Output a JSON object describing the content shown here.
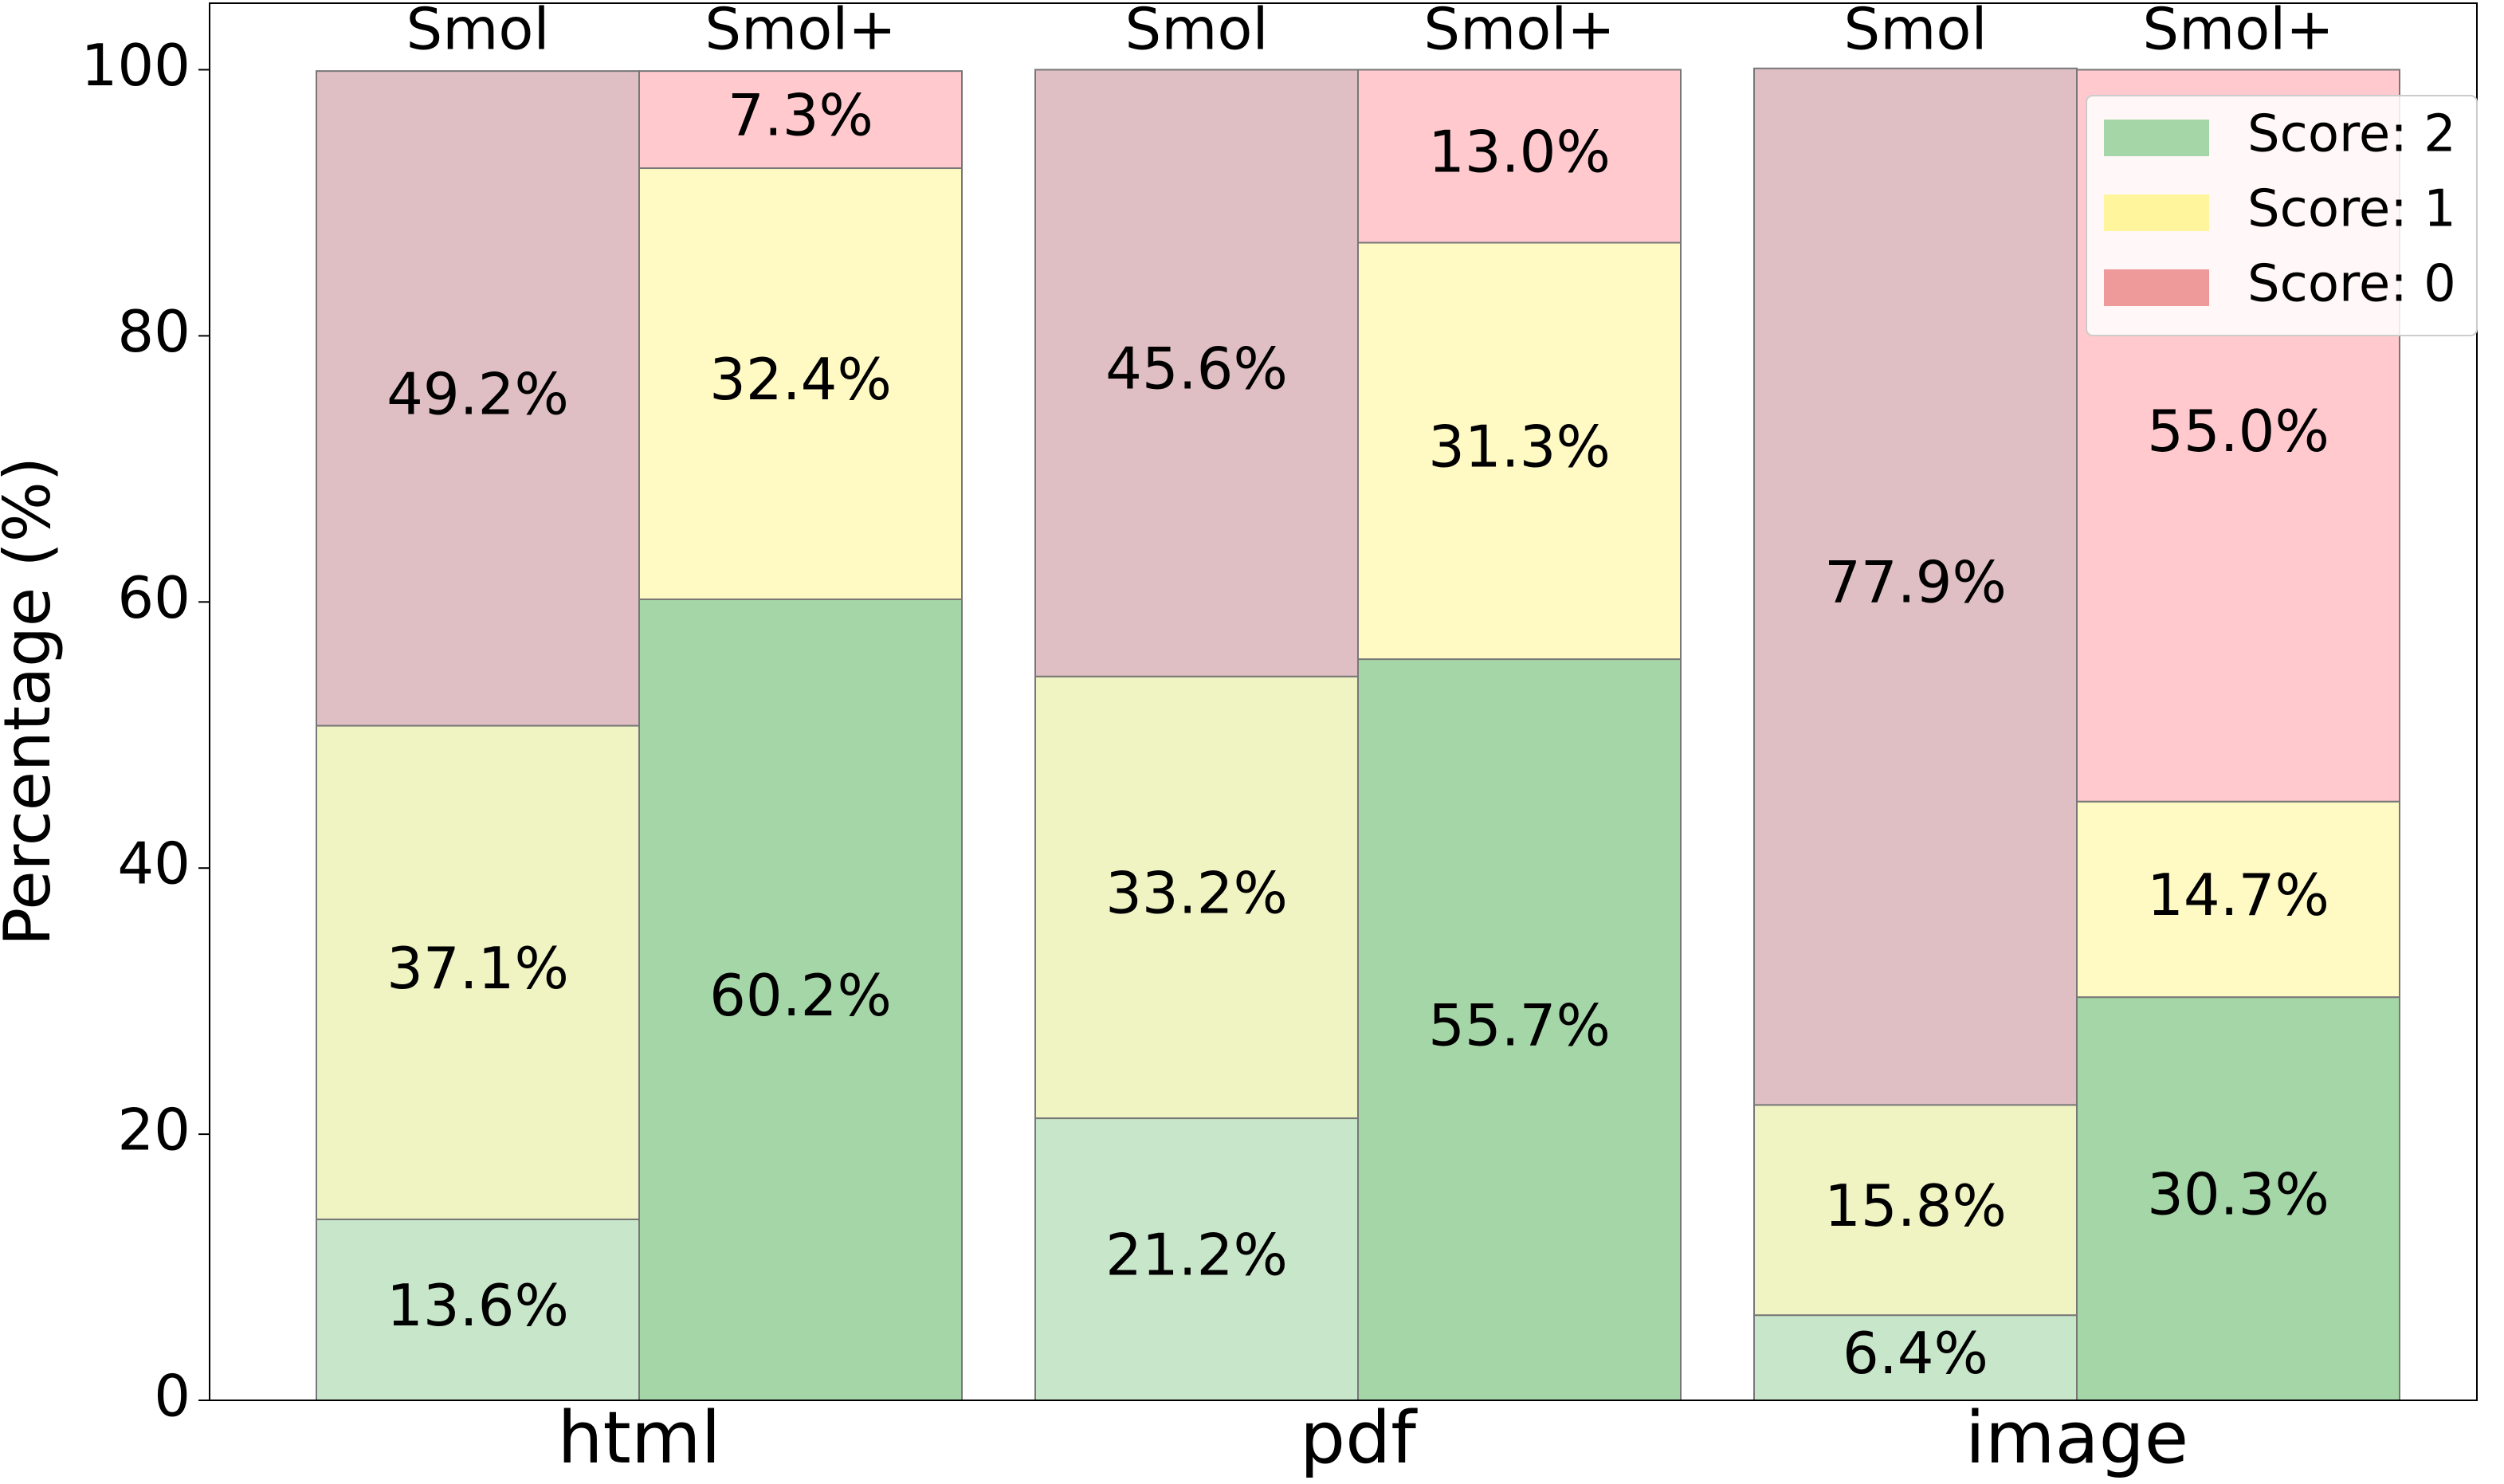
{
  "chart_data": {
    "type": "stacked_grouped_bar",
    "ylabel": "Percentage (%)",
    "categories": [
      "html",
      "pdf",
      "image"
    ],
    "groups": [
      "Smol",
      "Smol+"
    ],
    "ylim": [
      0,
      105
    ],
    "yticks": [
      0,
      20,
      40,
      60,
      80,
      100
    ],
    "legend": "upper right",
    "series": [
      {
        "name": "Score: 2",
        "color": "#a5d6a7",
        "bar_colors": [
          "#c8e6c9",
          "#a5d6a7"
        ],
        "values": [
          [
            13.6,
            21.2,
            6.4
          ],
          [
            60.2,
            55.7,
            30.3
          ]
        ],
        "value_labels": [
          [
            "13.6%",
            "21.2%",
            "6.4%"
          ],
          [
            "60.2%",
            "55.7%",
            "30.3%"
          ]
        ]
      },
      {
        "name": "Score: 1",
        "color": "#fff59d",
        "bar_colors": [
          "#f0f4c3",
          "#fff9c4"
        ],
        "values": [
          [
            37.1,
            33.2,
            15.8
          ],
          [
            32.4,
            31.3,
            14.7
          ]
        ],
        "value_labels": [
          [
            "37.1%",
            "33.2%",
            "15.8%"
          ],
          [
            "32.4%",
            "31.3%",
            "14.7%"
          ]
        ]
      },
      {
        "name": "Score: 0",
        "color": "#ef9a9a",
        "bar_colors": [
          "#dfbfc3",
          "#ffc9ce"
        ],
        "values": [
          [
            49.2,
            45.6,
            77.9
          ],
          [
            7.3,
            13.0,
            55.0
          ]
        ],
        "value_labels": [
          [
            "49.2%",
            "45.6%",
            "77.9%"
          ],
          [
            "7.3%",
            "13.0%",
            "55.0%"
          ]
        ]
      }
    ]
  }
}
